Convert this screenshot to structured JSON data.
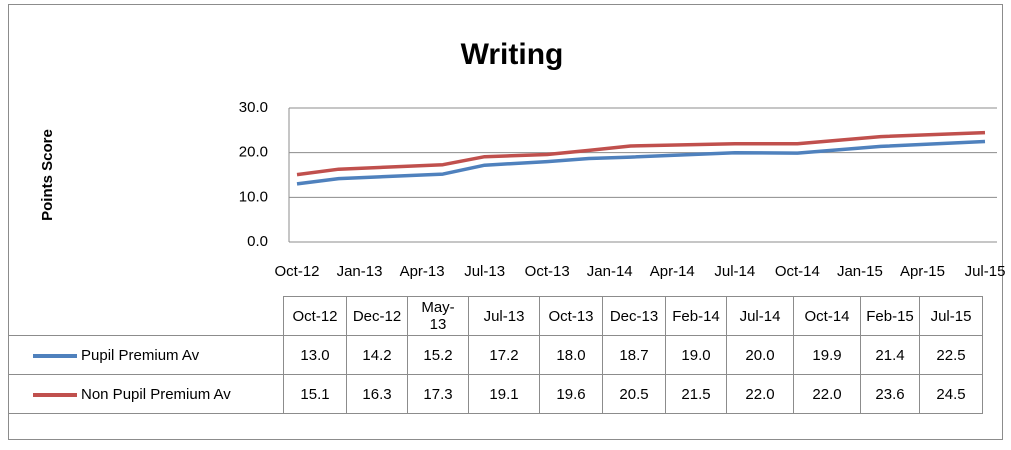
{
  "chart_data": {
    "type": "line",
    "title": "Writing",
    "y_label": "Points Score",
    "categories": [
      "Oct-12",
      "Dec-12",
      "May-13",
      "Jul-13",
      "Oct-13",
      "Dec-13",
      "Feb-14",
      "Jul-14",
      "Oct-14",
      "Feb-15",
      "Jul-15"
    ],
    "xlim": [
      "Oct-12",
      "Jul-15"
    ],
    "xticks": [
      "Oct-12",
      "Jan-13",
      "Apr-13",
      "Jul-13",
      "Oct-13",
      "Jan-14",
      "Apr-14",
      "Jul-14",
      "Oct-14",
      "Jan-15",
      "Apr-15",
      "Jul-15"
    ],
    "ylim": [
      0,
      30
    ],
    "yticks": [
      {
        "value": 0,
        "label": "0.0"
      },
      {
        "value": 10,
        "label": "10.0"
      },
      {
        "value": 20,
        "label": "20.0"
      },
      {
        "value": 30,
        "label": "30.0"
      }
    ],
    "grid": true,
    "series": [
      {
        "name": "Pupil Premium Av",
        "color": "#4f81bd",
        "values": [
          13.0,
          14.2,
          15.2,
          17.2,
          18.0,
          18.7,
          19.0,
          20.0,
          19.9,
          21.4,
          22.5
        ],
        "value_labels": [
          "13.0",
          "14.2",
          "15.2",
          "17.2",
          "18.0",
          "18.7",
          "19.0",
          "20.0",
          "19.9",
          "21.4",
          "22.5"
        ]
      },
      {
        "name": "Non Pupil Premium Av",
        "color": "#c0504d",
        "values": [
          15.1,
          16.3,
          17.3,
          19.1,
          19.6,
          20.5,
          21.5,
          22.0,
          22.0,
          23.6,
          24.5
        ],
        "value_labels": [
          "15.1",
          "16.3",
          "17.3",
          "19.1",
          "19.6",
          "20.5",
          "21.5",
          "22.0",
          "22.0",
          "23.6",
          "24.5"
        ]
      }
    ]
  }
}
